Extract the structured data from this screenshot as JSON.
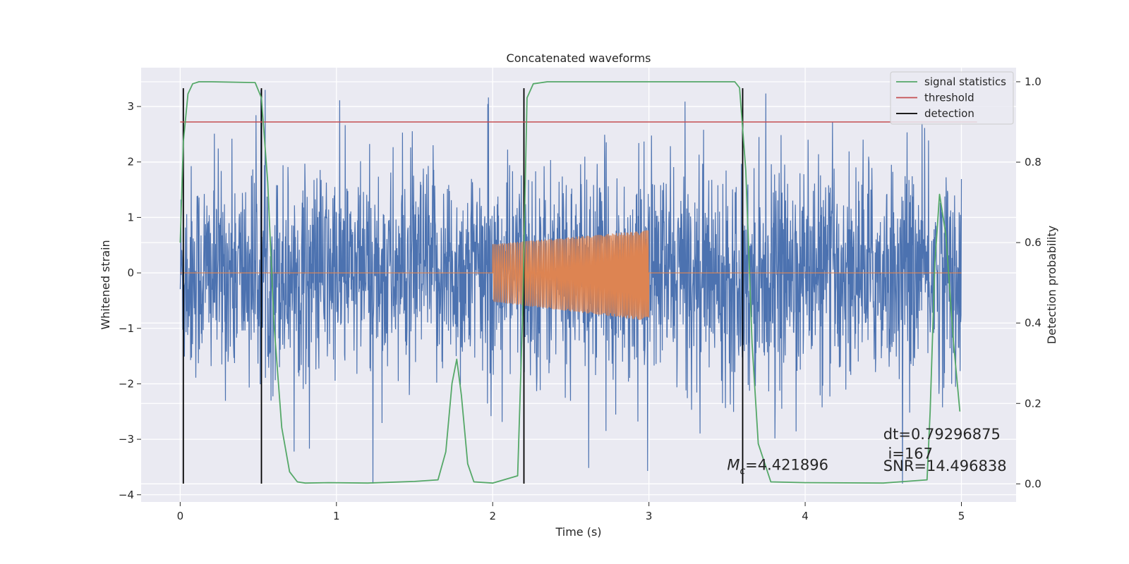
{
  "chart_data": {
    "type": "line",
    "title": "Concatenated waveforms",
    "xlabel": "Time (s)",
    "ylabel": "Whitened strain",
    "y2label": "Detection probability",
    "xlim": [
      -0.25,
      5.35
    ],
    "ylim": [
      -4.13,
      3.7
    ],
    "y2lim": [
      -0.045,
      1.035
    ],
    "xticks": [
      0,
      1,
      2,
      3,
      4,
      5
    ],
    "yticks": [
      -4,
      -3,
      -2,
      -1,
      0,
      1,
      2,
      3
    ],
    "y2ticks": [
      0.0,
      0.2,
      0.4,
      0.6,
      0.8,
      1.0
    ],
    "xtick_labels": [
      "0",
      "1",
      "2",
      "3",
      "4",
      "5"
    ],
    "ytick_labels": [
      "−4",
      "−3",
      "−2",
      "−1",
      "0",
      "1",
      "2",
      "3"
    ],
    "y2tick_labels": [
      "0.0",
      "0.2",
      "0.4",
      "0.6",
      "0.8",
      "1.0"
    ],
    "grid": true,
    "background_color": "#eaeaf2",
    "legend_position": "top-right",
    "legend": [
      {
        "label": "signal statistics",
        "color": "#55a868"
      },
      {
        "label": "threshold",
        "color": "#c44e52"
      },
      {
        "label": "detection",
        "color": "#000000"
      }
    ],
    "series": [
      {
        "kind": "noise",
        "axis": "left",
        "color": "#4c72b0",
        "x_range": [
          0,
          5
        ],
        "approx_range": [
          -3.8,
          3.3
        ]
      },
      {
        "kind": "injected chirp",
        "axis": "left",
        "color": "#dd8452",
        "x_range": [
          2.0,
          3.0
        ],
        "amplitude_start": 0.52,
        "amplitude_end": 0.82,
        "baseline": 0
      },
      {
        "name": "signal statistics",
        "axis": "right",
        "color": "#55a868",
        "x": [
          0.0,
          0.02,
          0.05,
          0.08,
          0.12,
          0.2,
          0.48,
          0.52,
          0.56,
          0.6,
          0.65,
          0.7,
          0.75,
          0.8,
          0.95,
          1.2,
          1.5,
          1.65,
          1.7,
          1.74,
          1.77,
          1.8,
          1.84,
          1.88,
          2.0,
          2.16,
          2.19,
          2.22,
          2.26,
          2.35,
          3.55,
          3.58,
          3.62,
          3.66,
          3.7,
          3.78,
          4.0,
          4.5,
          4.78,
          4.8,
          4.83,
          4.86,
          4.9,
          4.95,
          4.99
        ],
        "y": [
          0.6,
          0.85,
          0.97,
          0.995,
          1.0,
          1.0,
          0.998,
          0.96,
          0.75,
          0.4,
          0.14,
          0.03,
          0.005,
          0.002,
          0.003,
          0.002,
          0.006,
          0.01,
          0.08,
          0.25,
          0.31,
          0.22,
          0.05,
          0.005,
          0.002,
          0.02,
          0.4,
          0.96,
          0.995,
          1.0,
          1.0,
          0.985,
          0.78,
          0.35,
          0.1,
          0.005,
          0.003,
          0.002,
          0.01,
          0.18,
          0.55,
          0.72,
          0.62,
          0.35,
          0.18
        ]
      },
      {
        "name": "threshold",
        "axis": "right",
        "color": "#c44e52",
        "x": [
          0,
          5.1
        ],
        "y": [
          0.9,
          0.9
        ]
      },
      {
        "name": "detection",
        "axis": "left",
        "color": "#000000",
        "x": [
          0.02,
          0.52,
          2.2,
          3.6
        ],
        "y_range": [
          -3.8,
          3.33
        ]
      }
    ],
    "annotations": [
      {
        "id": "mc",
        "symbol": "M",
        "subscript": "c",
        "text": "=4.421896",
        "x": 3.5,
        "y": -3.55
      },
      {
        "id": "dt",
        "text": "dt=0.79296875",
        "x": 4.5,
        "y": -3.0
      },
      {
        "id": "i",
        "text": " i=167",
        "x": 4.5,
        "y": -3.35
      },
      {
        "id": "snr",
        "text": "SNR=14.496838",
        "x": 4.5,
        "y": -3.57
      }
    ]
  }
}
